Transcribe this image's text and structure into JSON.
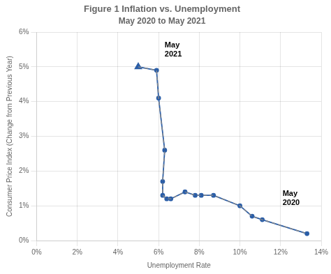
{
  "chart_data": {
    "type": "line",
    "title": "Figure 1 Inflation vs. Unemployment",
    "subtitle": "May 2020 to May 2021",
    "xlabel": "Unemployment Rate",
    "ylabel": "Consumer Price Index (Change from Previous Year)",
    "xlim": [
      0.0,
      0.14
    ],
    "ylim": [
      0.0,
      0.06
    ],
    "xticks": [
      {
        "value": 0.0,
        "label": "0%"
      },
      {
        "value": 0.02,
        "label": "2%"
      },
      {
        "value": 0.04,
        "label": "4%"
      },
      {
        "value": 0.06,
        "label": "6%"
      },
      {
        "value": 0.08,
        "label": "8%"
      },
      {
        "value": 0.1,
        "label": "10%"
      },
      {
        "value": 0.12,
        "label": "12%"
      },
      {
        "value": 0.14,
        "label": "14%"
      }
    ],
    "yticks": [
      {
        "value": 0.0,
        "label": "0%"
      },
      {
        "value": 0.01,
        "label": "1%"
      },
      {
        "value": 0.02,
        "label": "2%"
      },
      {
        "value": 0.03,
        "label": "3%"
      },
      {
        "value": 0.04,
        "label": "4%"
      },
      {
        "value": 0.05,
        "label": "5%"
      },
      {
        "value": 0.06,
        "label": "6%"
      }
    ],
    "grid": true,
    "series": [
      {
        "color": "#888888",
        "line_style": "dashed",
        "marker": "none",
        "x": [
          0.05,
          0.059,
          0.06,
          0.063,
          0.062,
          0.062,
          0.064,
          0.066,
          0.073,
          0.078,
          0.081,
          0.087,
          0.1,
          0.106,
          0.111,
          0.133
        ],
        "values": [
          0.05,
          0.049,
          0.041,
          0.026,
          0.017,
          0.013,
          0.012,
          0.012,
          0.014,
          0.013,
          0.013,
          0.013,
          0.01,
          0.007,
          0.006,
          0.002
        ]
      },
      {
        "color": "#2b5ea7",
        "line_style": "solid",
        "marker": "circle",
        "x": [
          0.133,
          0.111,
          0.106,
          0.1,
          0.087,
          0.081,
          0.078,
          0.073,
          0.066,
          0.064,
          0.062,
          0.062,
          0.063,
          0.06,
          0.059
        ],
        "values": [
          0.002,
          0.006,
          0.007,
          0.01,
          0.013,
          0.013,
          0.013,
          0.014,
          0.012,
          0.012,
          0.013,
          0.017,
          0.026,
          0.041,
          0.049
        ]
      },
      {
        "color": "#2b5ea7",
        "line_style": "solid",
        "marker": "none",
        "x": [
          0.059,
          0.05
        ],
        "values": [
          0.049,
          0.05
        ]
      },
      {
        "color": "#2b5ea7",
        "line_style": "none",
        "marker": "triangle",
        "x": [
          0.05
        ],
        "values": [
          0.05
        ]
      }
    ],
    "annotations": [
      {
        "text": "May\n2021",
        "x": 0.063,
        "y": 0.052
      },
      {
        "text": "May\n2020",
        "x": 0.121,
        "y": 0.012
      }
    ]
  }
}
